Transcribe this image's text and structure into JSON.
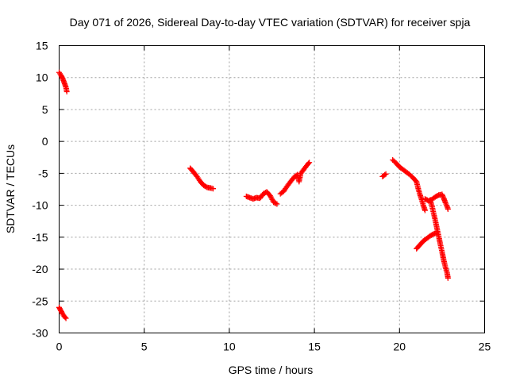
{
  "colors": {
    "series": "#ff0000",
    "axis": "#000000",
    "grid": "#a0a0a0"
  },
  "chart_data": {
    "type": "scatter",
    "title": "Day 071 of 2026, Sidereal Day-to-day VTEC variation (SDTVAR) for receiver spja",
    "xlabel": "GPS time / hours",
    "ylabel": "SDTVAR / TECUs",
    "xlim": [
      0,
      25
    ],
    "ylim": [
      -30,
      15
    ],
    "xticks": [
      0,
      5,
      10,
      15,
      20,
      25
    ],
    "yticks": [
      15,
      10,
      5,
      0,
      -5,
      -10,
      -15,
      -20,
      -25,
      -30
    ],
    "grid": true,
    "marker": "plus",
    "segments": [
      {
        "points": [
          [
            0.0,
            10.8
          ],
          [
            0.1,
            10.4
          ],
          [
            0.2,
            9.9
          ],
          [
            0.3,
            9.2
          ],
          [
            0.4,
            8.5
          ],
          [
            0.45,
            7.8
          ]
        ]
      },
      {
        "points": [
          [
            0.0,
            -26.0
          ],
          [
            0.1,
            -26.5
          ],
          [
            0.2,
            -27.0
          ],
          [
            0.3,
            -27.4
          ],
          [
            0.4,
            -27.7
          ]
        ]
      },
      {
        "points": [
          [
            7.7,
            -4.2
          ],
          [
            7.9,
            -4.8
          ],
          [
            8.1,
            -5.5
          ],
          [
            8.3,
            -6.3
          ],
          [
            8.5,
            -6.9
          ],
          [
            8.7,
            -7.2
          ],
          [
            8.9,
            -7.3
          ],
          [
            9.05,
            -7.4
          ]
        ]
      },
      {
        "points": [
          [
            11.0,
            -8.6
          ],
          [
            11.2,
            -8.8
          ],
          [
            11.4,
            -9.0
          ],
          [
            11.6,
            -8.8
          ],
          [
            11.8,
            -8.9
          ],
          [
            12.0,
            -8.2
          ],
          [
            12.2,
            -7.9
          ],
          [
            12.4,
            -8.5
          ],
          [
            12.6,
            -9.5
          ],
          [
            12.8,
            -9.8
          ]
        ]
      },
      {
        "points": [
          [
            13.0,
            -8.2
          ],
          [
            13.2,
            -7.8
          ],
          [
            13.4,
            -7.0
          ],
          [
            13.6,
            -6.3
          ],
          [
            13.8,
            -5.6
          ],
          [
            14.0,
            -5.2
          ],
          [
            14.1,
            -6.3
          ],
          [
            14.2,
            -5.0
          ],
          [
            14.4,
            -4.3
          ],
          [
            14.6,
            -3.6
          ],
          [
            14.7,
            -3.3
          ]
        ]
      },
      {
        "points": [
          [
            19.0,
            -5.5
          ],
          [
            19.2,
            -5.1
          ]
        ]
      },
      {
        "points": [
          [
            19.6,
            -2.9
          ],
          [
            19.8,
            -3.4
          ],
          [
            20.0,
            -4.0
          ],
          [
            20.2,
            -4.4
          ],
          [
            20.4,
            -4.8
          ],
          [
            20.6,
            -5.2
          ],
          [
            20.8,
            -5.7
          ],
          [
            21.0,
            -6.3
          ],
          [
            21.1,
            -7.4
          ],
          [
            21.2,
            -8.3
          ],
          [
            21.3,
            -9.1
          ],
          [
            21.4,
            -10.0
          ],
          [
            21.5,
            -10.8
          ]
        ]
      },
      {
        "points": [
          [
            21.5,
            -9.0
          ],
          [
            21.7,
            -9.3
          ],
          [
            21.9,
            -9.1
          ],
          [
            22.1,
            -8.7
          ],
          [
            22.3,
            -8.4
          ],
          [
            22.5,
            -8.3
          ],
          [
            22.6,
            -8.9
          ],
          [
            22.7,
            -9.6
          ],
          [
            22.8,
            -10.2
          ],
          [
            22.85,
            -10.6
          ]
        ]
      },
      {
        "points": [
          [
            21.0,
            -16.8
          ],
          [
            21.2,
            -16.2
          ],
          [
            21.4,
            -15.6
          ],
          [
            21.6,
            -15.2
          ],
          [
            21.8,
            -14.8
          ],
          [
            22.0,
            -14.5
          ],
          [
            22.2,
            -14.3
          ]
        ]
      },
      {
        "points": [
          [
            21.8,
            -9.2
          ],
          [
            21.9,
            -10.0
          ],
          [
            22.0,
            -11.2
          ],
          [
            22.1,
            -12.3
          ],
          [
            22.2,
            -13.6
          ],
          [
            22.3,
            -14.8
          ],
          [
            22.4,
            -16.1
          ],
          [
            22.5,
            -17.3
          ],
          [
            22.6,
            -18.6
          ],
          [
            22.7,
            -19.7
          ],
          [
            22.8,
            -20.6
          ],
          [
            22.85,
            -21.4
          ]
        ]
      }
    ]
  }
}
